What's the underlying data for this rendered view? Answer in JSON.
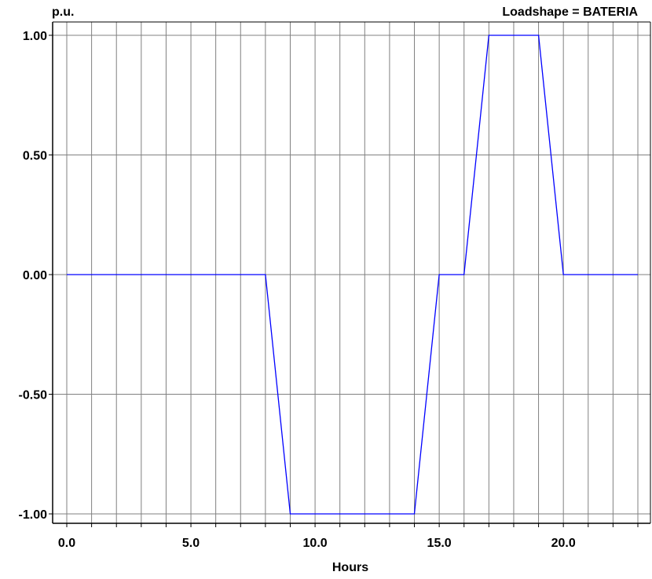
{
  "chart_data": {
    "type": "line",
    "title": "Loadshape = BATERIA",
    "ylabel": "p.u.",
    "xlabel": "Hours",
    "xlim": [
      0,
      23
    ],
    "ylim": [
      -1.0,
      1.0
    ],
    "xticks": [
      0,
      5,
      10,
      15,
      20
    ],
    "xtick_labels": [
      "0.0",
      "5.0",
      "10.0",
      "15.0",
      "20.0"
    ],
    "yticks": [
      1.0,
      0.5,
      0.0,
      -0.5,
      -1.0
    ],
    "ytick_labels": [
      "1.00",
      "0.50",
      "0.00",
      "-0.50",
      "-1.00"
    ],
    "grid": true,
    "series": [
      {
        "color": "#0000ff",
        "x": [
          0,
          1,
          2,
          3,
          4,
          5,
          6,
          7,
          8,
          9,
          10,
          11,
          12,
          13,
          14,
          15,
          16,
          17,
          18,
          19,
          20,
          21,
          22,
          23
        ],
        "y": [
          0,
          0,
          0,
          0,
          0,
          0,
          0,
          0,
          0,
          -1,
          -1,
          -1,
          -1,
          -1,
          -1,
          0,
          0,
          1,
          1,
          1,
          0,
          0,
          0,
          0
        ]
      }
    ]
  },
  "colors": {
    "line": "#0000ff",
    "grid": "#808080",
    "axis": "#000000"
  }
}
